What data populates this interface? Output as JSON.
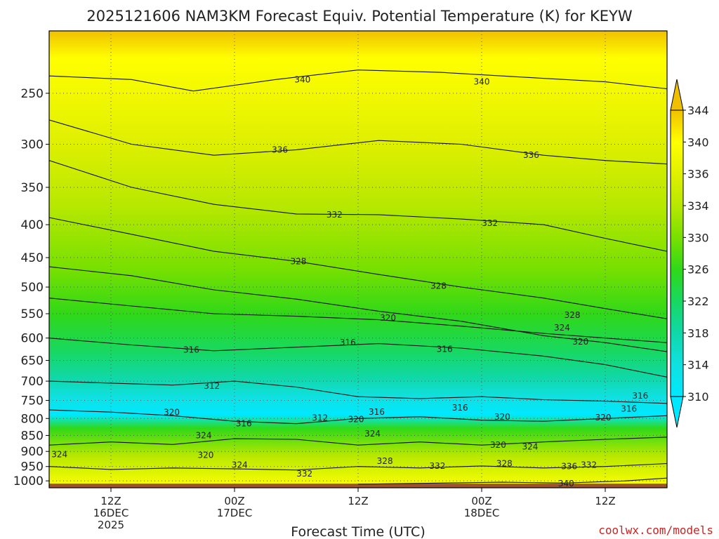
{
  "chart_data": {
    "type": "heatmap",
    "title": "2025121606 NAM3KM Forecast Equiv. Potential Temperature (K) for KEYW",
    "xlabel": "Forecast Time (UTC)",
    "ylabel": "",
    "credit": "coolwx.com/models",
    "x_unit": "hour",
    "x_range": [
      6,
      66
    ],
    "y_unit": "hPa",
    "y_range": [
      1025,
      200
    ],
    "y_scale": "log",
    "x_ticks": [
      {
        "x": 12,
        "label": "12Z",
        "sub1": "16DEC",
        "sub2": "2025"
      },
      {
        "x": 24,
        "label": "00Z",
        "sub1": "17DEC",
        "sub2": ""
      },
      {
        "x": 36,
        "label": "12Z",
        "sub1": "",
        "sub2": ""
      },
      {
        "x": 48,
        "label": "00Z",
        "sub1": "18DEC",
        "sub2": ""
      },
      {
        "x": 60,
        "label": "12Z",
        "sub1": "",
        "sub2": ""
      }
    ],
    "y_ticks": [
      250,
      300,
      350,
      400,
      450,
      500,
      550,
      600,
      650,
      700,
      750,
      800,
      850,
      900,
      950,
      1000
    ],
    "colorbar": {
      "labels": [
        344,
        340,
        336,
        334,
        330,
        326,
        322,
        318,
        314,
        310
      ],
      "colors": [
        "#f0c000",
        "#ffff00",
        "#e0f000",
        "#b8e800",
        "#78e000",
        "#30d818",
        "#18d860",
        "#10d8a8",
        "#10e0e0",
        "#00e8ff"
      ]
    },
    "ground_color": "#a0522d",
    "grid": true,
    "contours": [
      {
        "label": "340",
        "p": [
          [
            6,
            235
          ],
          [
            14,
            238
          ],
          [
            20,
            248
          ],
          [
            28,
            238
          ],
          [
            36,
            230
          ],
          [
            44,
            232
          ],
          [
            52,
            236
          ],
          [
            60,
            240
          ],
          [
            66,
            246
          ]
        ]
      },
      {
        "label": "336",
        "p": [
          [
            6,
            275
          ],
          [
            14,
            300
          ],
          [
            22,
            312
          ],
          [
            30,
            306
          ],
          [
            38,
            296
          ],
          [
            46,
            300
          ],
          [
            54,
            312
          ],
          [
            60,
            318
          ],
          [
            66,
            322
          ]
        ]
      },
      {
        "label": "332",
        "p": [
          [
            6,
            318
          ],
          [
            14,
            350
          ],
          [
            22,
            372
          ],
          [
            30,
            385
          ],
          [
            38,
            386
          ],
          [
            46,
            392
          ],
          [
            54,
            400
          ],
          [
            60,
            420
          ],
          [
            66,
            440
          ]
        ]
      },
      {
        "label": "328",
        "p": [
          [
            6,
            390
          ],
          [
            14,
            414
          ],
          [
            22,
            440
          ],
          [
            30,
            456
          ],
          [
            38,
            478
          ],
          [
            46,
            500
          ],
          [
            54,
            520
          ],
          [
            60,
            540
          ],
          [
            66,
            560
          ]
        ]
      },
      {
        "label": "324",
        "p": [
          [
            6,
            465
          ],
          [
            14,
            480
          ],
          [
            22,
            505
          ],
          [
            30,
            522
          ],
          [
            38,
            545
          ],
          [
            46,
            565
          ],
          [
            54,
            595
          ],
          [
            60,
            610
          ],
          [
            66,
            630
          ]
        ]
      },
      {
        "label": "320",
        "p": [
          [
            6,
            520
          ],
          [
            14,
            535
          ],
          [
            22,
            550
          ],
          [
            30,
            555
          ],
          [
            38,
            562
          ],
          [
            46,
            575
          ],
          [
            54,
            590
          ],
          [
            60,
            600
          ],
          [
            66,
            610
          ]
        ]
      },
      {
        "label": "316",
        "p": [
          [
            6,
            600
          ],
          [
            14,
            615
          ],
          [
            22,
            628
          ],
          [
            30,
            620
          ],
          [
            38,
            612
          ],
          [
            46,
            622
          ],
          [
            54,
            640
          ],
          [
            60,
            660
          ],
          [
            66,
            690
          ]
        ]
      },
      {
        "label": "312",
        "p": [
          [
            6,
            700
          ],
          [
            12,
            705
          ],
          [
            18,
            710
          ],
          [
            24,
            700
          ],
          [
            30,
            715
          ],
          [
            36,
            740
          ],
          [
            42,
            745
          ],
          [
            48,
            740
          ],
          [
            54,
            748
          ],
          [
            60,
            752
          ],
          [
            66,
            758
          ]
        ]
      },
      {
        "label": "320",
        "p": [
          [
            6,
            776
          ],
          [
            12,
            782
          ],
          [
            18,
            792
          ],
          [
            24,
            808
          ],
          [
            30,
            815
          ],
          [
            36,
            800
          ],
          [
            42,
            795
          ],
          [
            48,
            805
          ],
          [
            54,
            808
          ],
          [
            60,
            800
          ],
          [
            66,
            792
          ]
        ]
      },
      {
        "label": "324",
        "p": [
          [
            6,
            880
          ],
          [
            12,
            870
          ],
          [
            18,
            878
          ],
          [
            24,
            860
          ],
          [
            30,
            862
          ],
          [
            36,
            880
          ],
          [
            42,
            870
          ],
          [
            48,
            880
          ],
          [
            54,
            870
          ],
          [
            60,
            862
          ],
          [
            66,
            855
          ]
        ]
      },
      {
        "label": "332",
        "p": [
          [
            6,
            950
          ],
          [
            12,
            960
          ],
          [
            18,
            955
          ],
          [
            24,
            958
          ],
          [
            30,
            962
          ],
          [
            36,
            950
          ],
          [
            42,
            955
          ],
          [
            48,
            948
          ],
          [
            54,
            955
          ],
          [
            60,
            950
          ],
          [
            66,
            940
          ]
        ]
      },
      {
        "label": "340",
        "p": [
          [
            36,
            1012
          ],
          [
            44,
            1008
          ],
          [
            50,
            1005
          ],
          [
            56,
            1008
          ],
          [
            62,
            1000
          ],
          [
            66,
            990
          ]
        ]
      }
    ],
    "contour_labels": [
      {
        "text": "340",
        "x": 30.6,
        "y": 238
      },
      {
        "text": "340",
        "x": 48.0,
        "y": 240
      },
      {
        "text": "336",
        "x": 28.4,
        "y": 306
      },
      {
        "text": "336",
        "x": 52.8,
        "y": 312
      },
      {
        "text": "332",
        "x": 33.7,
        "y": 386
      },
      {
        "text": "332",
        "x": 48.8,
        "y": 398
      },
      {
        "text": "328",
        "x": 30.2,
        "y": 456
      },
      {
        "text": "328",
        "x": 43.8,
        "y": 498
      },
      {
        "text": "320",
        "x": 38.9,
        "y": 558
      },
      {
        "text": "328",
        "x": 56.8,
        "y": 553
      },
      {
        "text": "324",
        "x": 55.8,
        "y": 578
      },
      {
        "text": "316",
        "x": 19.8,
        "y": 626
      },
      {
        "text": "316",
        "x": 35.0,
        "y": 610
      },
      {
        "text": "316",
        "x": 44.4,
        "y": 624
      },
      {
        "text": "320",
        "x": 57.6,
        "y": 608
      },
      {
        "text": "312",
        "x": 21.8,
        "y": 712
      },
      {
        "text": "316",
        "x": 63.4,
        "y": 738
      },
      {
        "text": "316",
        "x": 45.9,
        "y": 770
      },
      {
        "text": "316",
        "x": 62.3,
        "y": 773
      },
      {
        "text": "320",
        "x": 17.9,
        "y": 783
      },
      {
        "text": "312",
        "x": 32.3,
        "y": 798
      },
      {
        "text": "316",
        "x": 24.9,
        "y": 815
      },
      {
        "text": "320",
        "x": 35.8,
        "y": 802
      },
      {
        "text": "316",
        "x": 37.8,
        "y": 782
      },
      {
        "text": "320",
        "x": 50.0,
        "y": 795
      },
      {
        "text": "320",
        "x": 59.8,
        "y": 797
      },
      {
        "text": "324",
        "x": 21.0,
        "y": 850
      },
      {
        "text": "324",
        "x": 37.4,
        "y": 845
      },
      {
        "text": "320",
        "x": 49.6,
        "y": 880
      },
      {
        "text": "324",
        "x": 52.7,
        "y": 885
      },
      {
        "text": "324",
        "x": 7.0,
        "y": 910
      },
      {
        "text": "320",
        "x": 21.2,
        "y": 912
      },
      {
        "text": "324",
        "x": 24.5,
        "y": 945
      },
      {
        "text": "328",
        "x": 38.6,
        "y": 932
      },
      {
        "text": "332",
        "x": 43.7,
        "y": 948
      },
      {
        "text": "328",
        "x": 50.2,
        "y": 940
      },
      {
        "text": "336",
        "x": 56.5,
        "y": 950
      },
      {
        "text": "332",
        "x": 58.4,
        "y": 945
      },
      {
        "text": "332",
        "x": 30.8,
        "y": 975
      },
      {
        "text": "340",
        "x": 56.2,
        "y": 1010
      }
    ]
  }
}
